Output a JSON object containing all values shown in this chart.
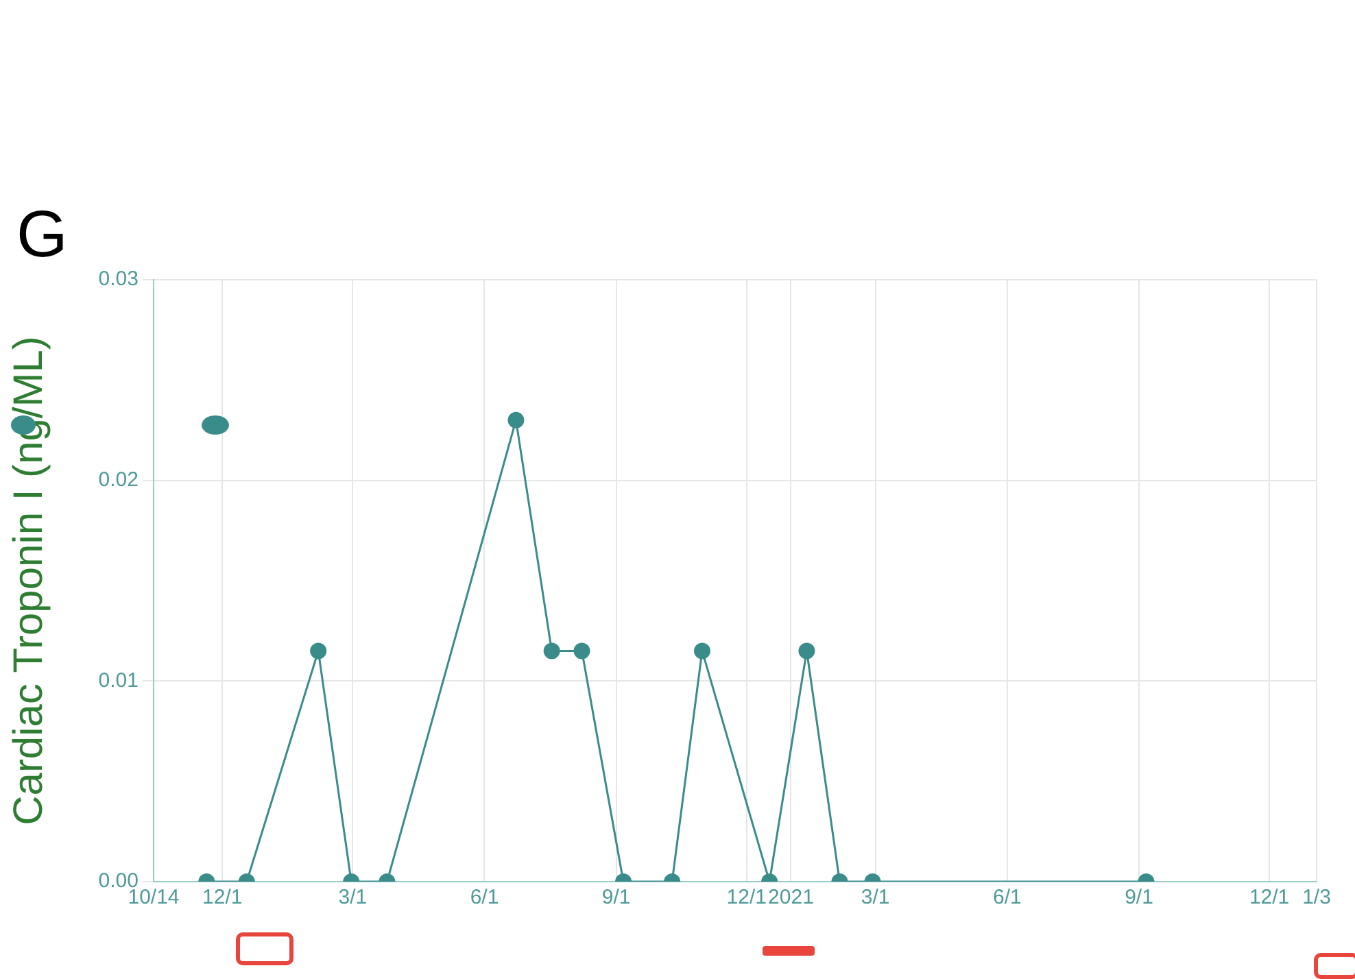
{
  "chart_data": {
    "type": "line",
    "title": "G",
    "ylabel": "Cardiac Troponin I (ng/ML)",
    "x": [
      "2019-11-20",
      "2019-12-18",
      "2020-02-06",
      "2020-02-29",
      "2020-03-25",
      "2020-06-23",
      "2020-07-18",
      "2020-08-08",
      "2020-09-06",
      "2020-10-10",
      "2020-10-31",
      "2020-12-17",
      "2021-01-12",
      "2021-02-04",
      "2021-02-27",
      "2021-09-06"
    ],
    "series": [
      {
        "color": "#3a8c8a",
        "values": [
          0,
          0,
          0.0115,
          0,
          0,
          0.023,
          0.0115,
          0.0115,
          0,
          0,
          0.0115,
          0,
          0.0115,
          0,
          0,
          0
        ]
      }
    ],
    "xlim": [
      "2019-10-14",
      "2022-01-03"
    ],
    "xticks": [
      {
        "value": "2019-10-14",
        "label": "10/14"
      },
      {
        "value": "2019-12-01",
        "label": "12/1"
      },
      {
        "value": "2020-03-01",
        "label": "3/1"
      },
      {
        "value": "2020-06-01",
        "label": "6/1"
      },
      {
        "value": "2020-09-01",
        "label": "9/1"
      },
      {
        "value": "2020-12-01",
        "label": "12/1"
      },
      {
        "value": "2021-01-01",
        "label": "2021"
      },
      {
        "value": "2021-03-01",
        "label": "3/1"
      },
      {
        "value": "2021-06-01",
        "label": "6/1"
      },
      {
        "value": "2021-09-01",
        "label": "9/1"
      },
      {
        "value": "2021-12-01",
        "label": "12/1"
      },
      {
        "value": "2022-01-03",
        "label": "1/3"
      }
    ],
    "ylim": [
      0,
      0.03
    ],
    "yticks": [
      {
        "value": 0,
        "label": "0.00"
      },
      {
        "value": 0.01,
        "label": "0.01"
      },
      {
        "value": 0.02,
        "label": "0.02"
      },
      {
        "value": 0.03,
        "label": "0.03"
      }
    ],
    "grid": true,
    "legend": false,
    "marker": "circle",
    "line_style": "solid"
  }
}
